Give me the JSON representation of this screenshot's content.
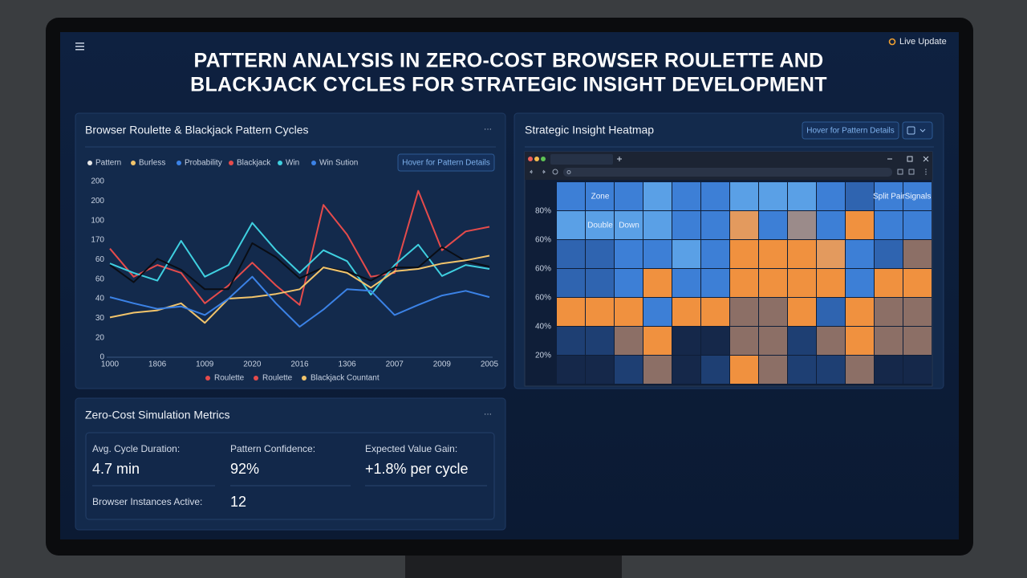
{
  "header": {
    "title": [
      "PATTERN ANALYSIS IN ZERO-COST BROWSER ROULETTE AND",
      "BLACKJACK CYCLES FOR STRATEGIC INSIGHT DEVELOPMENT"
    ],
    "live_update": "Live Update"
  },
  "chart_data": [
    {
      "type": "line",
      "title": "Browser Roulette & Blackjack Pattern Cycles",
      "menu": "···",
      "button": "Hover for Pattern Details",
      "legend_top": [
        {
          "name": "Pattern",
          "color": "#e8e8e8"
        },
        {
          "name": "Burless",
          "color": "#f2c46b"
        },
        {
          "name": "Probability",
          "color": "#3b82e6"
        },
        {
          "name": "Blackjack",
          "color": "#e54b4b"
        },
        {
          "name": "Win",
          "color": "#3fd0e0"
        },
        {
          "name": "Win Sution",
          "color": "#3b82e6"
        }
      ],
      "legend_bottom": [
        {
          "name": "Roulette",
          "color": "#e54b4b"
        },
        {
          "name": "Roulette",
          "color": "#e54b4b"
        },
        {
          "name": "Blackjack Countant",
          "color": "#f2c46b"
        }
      ],
      "categories": [
        "1000",
        null,
        "1806",
        null,
        "1009",
        null,
        "2020",
        null,
        "2016",
        null,
        "1306",
        null,
        "2007",
        null,
        "2009",
        null,
        "2005"
      ],
      "series": [
        {
          "color": "#e54b4b",
          "values": [
            139,
            103,
            118,
            108,
            69,
            92,
            121,
            92,
            67,
            195,
            157,
            103,
            108,
            213,
            137,
            161,
            167
          ]
        },
        {
          "color": "#3fd0e0",
          "values": [
            120,
            108,
            98,
            149,
            103,
            118,
            172,
            137,
            108,
            137,
            123,
            80,
            118,
            144,
            104,
            118,
            113
          ]
        },
        {
          "color": "#0a0d14",
          "values": [
            118,
            96,
            126,
            112,
            87,
            87,
            146,
            128,
            101,
            115,
            110,
            98,
            115,
            115,
            141,
            123,
            116
          ]
        },
        {
          "color": "#f2c46b",
          "values": [
            51,
            57,
            60,
            69,
            44,
            75,
            77,
            81,
            87,
            115,
            108,
            89,
            110,
            113,
            120,
            124,
            130
          ]
        },
        {
          "color": "#3b82e6",
          "values": [
            77,
            69,
            62,
            65,
            54,
            75,
            103,
            69,
            39,
            61,
            87,
            85,
            54,
            67,
            79,
            85,
            77
          ]
        }
      ],
      "ylim": [
        0,
        225
      ],
      "yticks": [
        0,
        {
          "value": 25,
          "label": "20"
        },
        {
          "value": 50,
          "label": "30"
        },
        {
          "value": 75,
          "label": "40"
        },
        {
          "value": 100,
          "label": "60"
        },
        {
          "value": 125,
          "label": "60"
        },
        {
          "value": 150,
          "label": "170"
        },
        {
          "value": 175,
          "label": "100"
        },
        {
          "value": 200,
          "label": "200"
        },
        {
          "value": 225,
          "label": "200"
        }
      ],
      "grid": false
    },
    {
      "type": "heatmap",
      "title": "Strategic Insight Heatmap",
      "button": "Hover for Pattern Details",
      "row_labels": [
        null,
        "80%",
        "60%",
        "60%",
        "60%",
        "40%",
        "20%"
      ],
      "colors": [
        [
          "#3d7fd6",
          "#3d7fd6",
          "#3d7fd6",
          "#5aa0e6",
          "#3d7fd6",
          "#3d7fd6",
          "#5aa0e6",
          "#5aa0e6",
          "#5aa0e6",
          "#3d7fd6",
          "#2f64b0",
          "#3d7fd6",
          "#3d7fd6"
        ],
        [
          "#5aa0e6",
          "#5aa0e6",
          "#5aa0e6",
          "#5aa0e6",
          "#3d7fd6",
          "#3d7fd6",
          "#e39a5e",
          "#3d7fd6",
          "#9b8b8a",
          "#3d7fd6",
          "#f0913f",
          "#3d7fd6",
          "#3d7fd6"
        ],
        [
          "#2f64b0",
          "#2f64b0",
          "#3d7fd6",
          "#3d7fd6",
          "#5aa0e6",
          "#3d7fd6",
          "#f0913f",
          "#f0913f",
          "#f0913f",
          "#e39a5e",
          "#3d7fd6",
          "#2f64b0",
          "#8c6f66"
        ],
        [
          "#2f64b0",
          "#2f64b0",
          "#3d7fd6",
          "#f0913f",
          "#3d7fd6",
          "#3d7fd6",
          "#f0913f",
          "#f0913f",
          "#f0913f",
          "#f0913f",
          "#3d7fd6",
          "#f0913f",
          "#f0913f"
        ],
        [
          "#f0913f",
          "#f0913f",
          "#f0913f",
          "#3d7fd6",
          "#f0913f",
          "#f0913f",
          "#8c6f66",
          "#8c6f66",
          "#f0913f",
          "#2f64b0",
          "#f0913f",
          "#8c6f66",
          "#8c6f66"
        ],
        [
          "#1e3f73",
          "#1e3f73",
          "#8c6f66",
          "#f0913f",
          "#15284a",
          "#15284a",
          "#8c6f66",
          "#8c6f66",
          "#1e3f73",
          "#8c6f66",
          "#f0913f",
          "#8c6f66",
          "#8c6f66"
        ],
        [
          "#15284a",
          "#15284a",
          "#1e3f73",
          "#8c6f66",
          "#15284a",
          "#1e3f73",
          "#f0913f",
          "#8c6f66",
          "#1e3f73",
          "#1e3f73",
          "#8c6f66",
          "#15284a",
          "#15284a"
        ]
      ],
      "cell_labels": [
        [
          null,
          "Zone",
          null,
          null,
          null,
          null,
          null,
          null,
          null,
          null,
          null,
          "Split Pair",
          "Signals"
        ],
        [
          null,
          "Double",
          "Down",
          null,
          null,
          null,
          null,
          null,
          null,
          null,
          null,
          null,
          null
        ]
      ]
    }
  ],
  "metrics": {
    "title": "Zero-Cost Simulation Metrics",
    "menu": "···",
    "items": [
      {
        "label": "Avg. Cycle Duration:",
        "value": "4.7 min"
      },
      {
        "label": "Pattern Confidence:",
        "value": "92%"
      },
      {
        "label": "Expected Value Gain:",
        "value": "+1.8% per cycle"
      },
      {
        "label": "Browser Instances Active:",
        "value": "12"
      }
    ]
  }
}
